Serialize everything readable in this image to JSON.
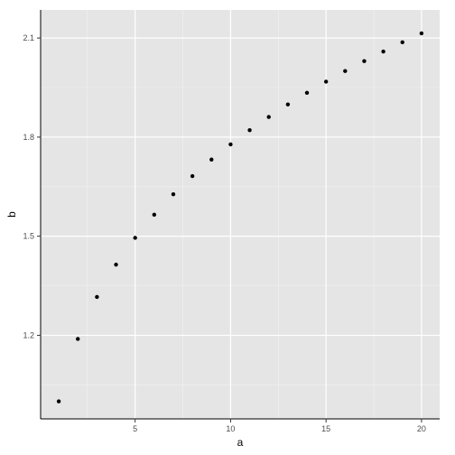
{
  "chart_data": {
    "type": "scatter",
    "title": "",
    "xlabel": "a",
    "ylabel": "b",
    "xlim": [
      0.05,
      20.95
    ],
    "ylim": [
      0.947,
      2.185
    ],
    "xticks": [
      5,
      10,
      15,
      20
    ],
    "xtick_labels": [
      "5",
      "10",
      "15",
      "20"
    ],
    "yticks": [
      1.2,
      1.5,
      1.8,
      2.1
    ],
    "ytick_labels": [
      "1.2",
      "1.5",
      "1.8",
      "2.1"
    ],
    "grid": true,
    "legend": "none",
    "colors": {
      "panel": "#e5e5e5",
      "grid_major": "#ffffff",
      "grid_minor": "#f2f2f2",
      "point": "#000000"
    },
    "series": [
      {
        "x": [
          1,
          2,
          3,
          4,
          5,
          6,
          7,
          8,
          9,
          10,
          11,
          12,
          13,
          14,
          15,
          16,
          17,
          18,
          19,
          20
        ],
        "y": [
          1.0,
          1.189,
          1.316,
          1.414,
          1.495,
          1.565,
          1.627,
          1.682,
          1.732,
          1.778,
          1.821,
          1.861,
          1.899,
          1.934,
          1.968,
          2.0,
          2.03,
          2.059,
          2.087,
          2.114
        ]
      }
    ]
  }
}
